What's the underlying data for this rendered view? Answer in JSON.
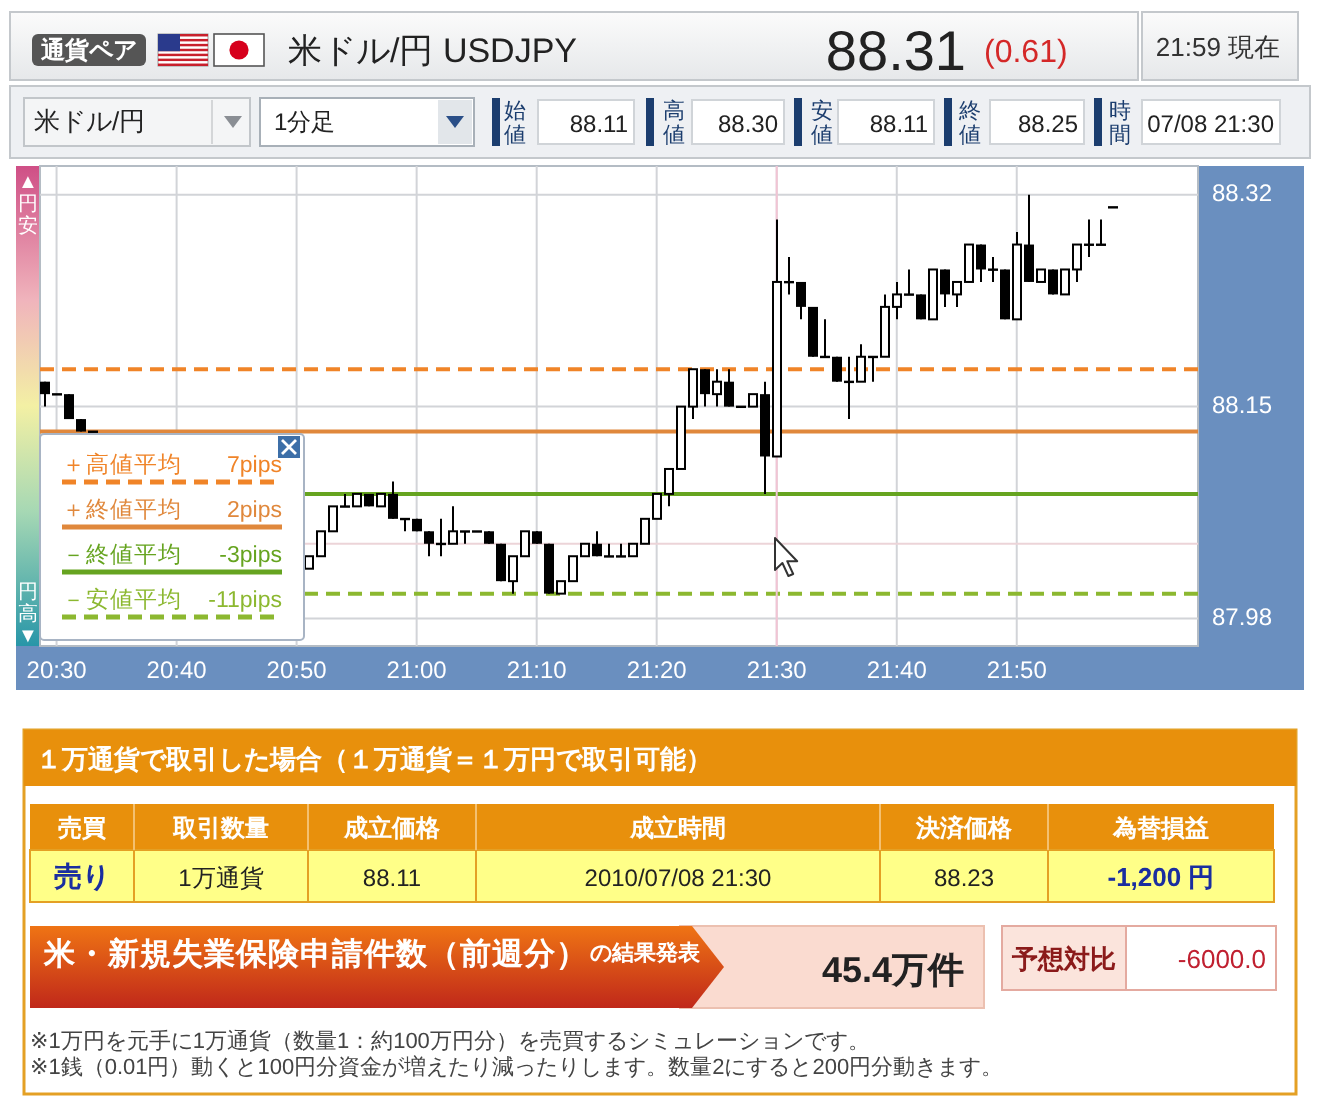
{
  "chart_data": {
    "type": "candlestick",
    "title": "米ドル/円 USDJPY",
    "x": [
      20.4833,
      20.5,
      20.5167,
      20.5333,
      20.55,
      20.85,
      20.8667,
      20.8833,
      20.9,
      20.9167,
      20.9333,
      20.95,
      20.9667,
      20.9833,
      21,
      21.0167,
      21.0333,
      21.05,
      21.0667,
      21.0833,
      21.1,
      21.1167,
      21.1333,
      21.15,
      21.1667,
      21.1833,
      21.2,
      21.2167,
      21.2333,
      21.25,
      21.2667,
      21.2833,
      21.3,
      21.3167,
      21.3333,
      21.35,
      21.3667,
      21.3833,
      21.4,
      21.4167,
      21.4333,
      21.45,
      21.4667,
      21.4833,
      21.5,
      21.5167,
      21.5333,
      21.55,
      21.5667,
      21.5833,
      21.6,
      21.6167,
      21.6333,
      21.65,
      21.6667,
      21.6833,
      21.7,
      21.7167,
      21.7333,
      21.75,
      21.7667,
      21.7833,
      21.8,
      21.8167,
      21.8333,
      21.85,
      21.8667,
      21.8833,
      21.9,
      21.9167,
      21.9333,
      21.95,
      21.9667
    ],
    "ohlc": [
      [
        88.17,
        88.17,
        88.15,
        88.16
      ],
      [
        88.16,
        88.16,
        88.16,
        88.16
      ],
      [
        88.16,
        88.16,
        88.14,
        88.14
      ],
      [
        88.14,
        88.14,
        88.13,
        88.13
      ],
      [
        88.13,
        88.13,
        88.13,
        88.13
      ],
      [
        88.02,
        88.03,
        88.02,
        88.03
      ],
      [
        88.03,
        88.05,
        88.03,
        88.05
      ],
      [
        88.05,
        88.07,
        88.05,
        88.07
      ],
      [
        88.07,
        88.08,
        88.07,
        88.07
      ],
      [
        88.07,
        88.08,
        88.07,
        88.08
      ],
      [
        88.08,
        88.08,
        88.07,
        88.07
      ],
      [
        88.07,
        88.08,
        88.07,
        88.08
      ],
      [
        88.08,
        88.09,
        88.06,
        88.06
      ],
      [
        88.06,
        88.06,
        88.05,
        88.06
      ],
      [
        88.06,
        88.06,
        88.05,
        88.05
      ],
      [
        88.05,
        88.05,
        88.03,
        88.04
      ],
      [
        88.04,
        88.06,
        88.03,
        88.04
      ],
      [
        88.04,
        88.07,
        88.04,
        88.05
      ],
      [
        88.05,
        88.05,
        88.04,
        88.05
      ],
      [
        88.05,
        88.05,
        88.05,
        88.05
      ],
      [
        88.05,
        88.05,
        88.04,
        88.04
      ],
      [
        88.04,
        88.04,
        88.01,
        88.01
      ],
      [
        88.01,
        88.03,
        88.0,
        88.03
      ],
      [
        88.03,
        88.05,
        88.03,
        88.05
      ],
      [
        88.05,
        88.05,
        88.04,
        88.04
      ],
      [
        88.04,
        88.04,
        88.0,
        88.0
      ],
      [
        88.0,
        88.01,
        88.0,
        88.01
      ],
      [
        88.01,
        88.03,
        88.01,
        88.03
      ],
      [
        88.03,
        88.04,
        88.03,
        88.04
      ],
      [
        88.04,
        88.05,
        88.03,
        88.03
      ],
      [
        88.03,
        88.04,
        88.03,
        88.03
      ],
      [
        88.03,
        88.04,
        88.03,
        88.03
      ],
      [
        88.03,
        88.04,
        88.03,
        88.04
      ],
      [
        88.04,
        88.06,
        88.04,
        88.06
      ],
      [
        88.06,
        88.08,
        88.06,
        88.08
      ],
      [
        88.08,
        88.1,
        88.07,
        88.1
      ],
      [
        88.1,
        88.15,
        88.1,
        88.15
      ],
      [
        88.15,
        88.18,
        88.14,
        88.18
      ],
      [
        88.18,
        88.18,
        88.15,
        88.16
      ],
      [
        88.16,
        88.18,
        88.15,
        88.17
      ],
      [
        88.17,
        88.18,
        88.15,
        88.15
      ],
      [
        88.15,
        88.15,
        88.15,
        88.15
      ],
      [
        88.15,
        88.16,
        88.15,
        88.16
      ],
      [
        88.16,
        88.17,
        88.08,
        88.11
      ],
      [
        88.11,
        88.3,
        88.11,
        88.25
      ],
      [
        88.25,
        88.27,
        88.24,
        88.25
      ],
      [
        88.25,
        88.25,
        88.22,
        88.23
      ],
      [
        88.23,
        88.23,
        88.19,
        88.19
      ],
      [
        88.19,
        88.22,
        88.19,
        88.19
      ],
      [
        88.19,
        88.19,
        88.17,
        88.17
      ],
      [
        88.17,
        88.19,
        88.14,
        88.17
      ],
      [
        88.17,
        88.2,
        88.17,
        88.19
      ],
      [
        88.19,
        88.19,
        88.17,
        88.19
      ],
      [
        88.19,
        88.24,
        88.19,
        88.23
      ],
      [
        88.23,
        88.25,
        88.22,
        88.24
      ],
      [
        88.24,
        88.26,
        88.24,
        88.24
      ],
      [
        88.24,
        88.24,
        88.22,
        88.22
      ],
      [
        88.22,
        88.26,
        88.22,
        88.26
      ],
      [
        88.26,
        88.26,
        88.23,
        88.24
      ],
      [
        88.24,
        88.25,
        88.23,
        88.25
      ],
      [
        88.25,
        88.28,
        88.25,
        88.28
      ],
      [
        88.28,
        88.28,
        88.25,
        88.26
      ],
      [
        88.26,
        88.27,
        88.25,
        88.26
      ],
      [
        88.26,
        88.26,
        88.22,
        88.22
      ],
      [
        88.22,
        88.29,
        88.22,
        88.28
      ],
      [
        88.28,
        88.32,
        88.25,
        88.25
      ],
      [
        88.25,
        88.26,
        88.25,
        88.26
      ],
      [
        88.26,
        88.26,
        88.24,
        88.24
      ],
      [
        88.24,
        88.26,
        88.24,
        88.26
      ],
      [
        88.26,
        88.28,
        88.25,
        88.28
      ],
      [
        88.28,
        88.3,
        88.27,
        88.28
      ],
      [
        88.28,
        88.3,
        88.28,
        88.28
      ],
      [
        88.31,
        88.31,
        88.31,
        88.31
      ]
    ],
    "xlim": [
      20.477,
      22.085
    ],
    "ylim": [
      87.958,
      88.343
    ],
    "xticks": [
      {
        "value": 20.5,
        "label": "20:30"
      },
      {
        "value": 20.6667,
        "label": "20:40"
      },
      {
        "value": 20.8333,
        "label": "20:50"
      },
      {
        "value": 21,
        "label": "21:00"
      },
      {
        "value": 21.1667,
        "label": "21:10"
      },
      {
        "value": 21.3333,
        "label": "21:20"
      },
      {
        "value": 21.5,
        "label": "21:30"
      },
      {
        "value": 21.6667,
        "label": "21:40"
      },
      {
        "value": 21.8333,
        "label": "21:50"
      }
    ],
    "yticks": [
      88.32,
      88.15,
      87.98
    ],
    "grid": true,
    "legend": "bottom left",
    "ref_lines": [
      {
        "axis": "y",
        "value": 88.18,
        "label": "＋高値平均 7pips",
        "color": "#f08428",
        "line_style": "dashed"
      },
      {
        "axis": "y",
        "value": 88.13,
        "label": "＋終値平均 2pips",
        "color": "#e0883c",
        "line_style": "solid"
      },
      {
        "axis": "y",
        "value": 88.08,
        "label": "－終値平均 -3pips",
        "color": "#66a420",
        "line_style": "solid"
      },
      {
        "axis": "y",
        "value": 88.0,
        "label": "－安値平均 -11pips",
        "color": "#8cb830",
        "line_style": "dashed"
      },
      {
        "axis": "x",
        "value": 21.5,
        "color": "#f2c4d4",
        "line_style": "solid"
      },
      {
        "axis": "y",
        "value": 88.04,
        "color": "#ecd4d8",
        "line_style": "solid"
      }
    ],
    "annotations": [
      "通貨ペア",
      "88.31",
      "(0.61)",
      "21:59 現在",
      "米ドル/円",
      "1分足",
      "始値",
      "88.11",
      "高値",
      "88.30",
      "安値",
      "88.11",
      "終値",
      "88.25",
      "時間",
      "07/08 21:30",
      "▲円安",
      "円高▼",
      "１万通貨で取引した場合（１万通貨＝１万円で取引可能）",
      "売買",
      "取引数量",
      "成立価格",
      "成立時間",
      "決済価格",
      "為替損益",
      "売り",
      "1万通貨",
      "88.11",
      "2010/07/08 21:30",
      "88.23",
      "-1,200 円",
      "米・新規失業保険申請件数（前週分）",
      "の結果発表",
      "45.4万件",
      "予想対比",
      "-6000.0",
      "※1万円を元手に1万通貨（数量1：約100万円分）を売買するシミュレーションです。",
      "※1銭（0.01円）動くと100円分資金が増えたり減ったりします。数量2にすると200円分動きます。"
    ]
  }
}
